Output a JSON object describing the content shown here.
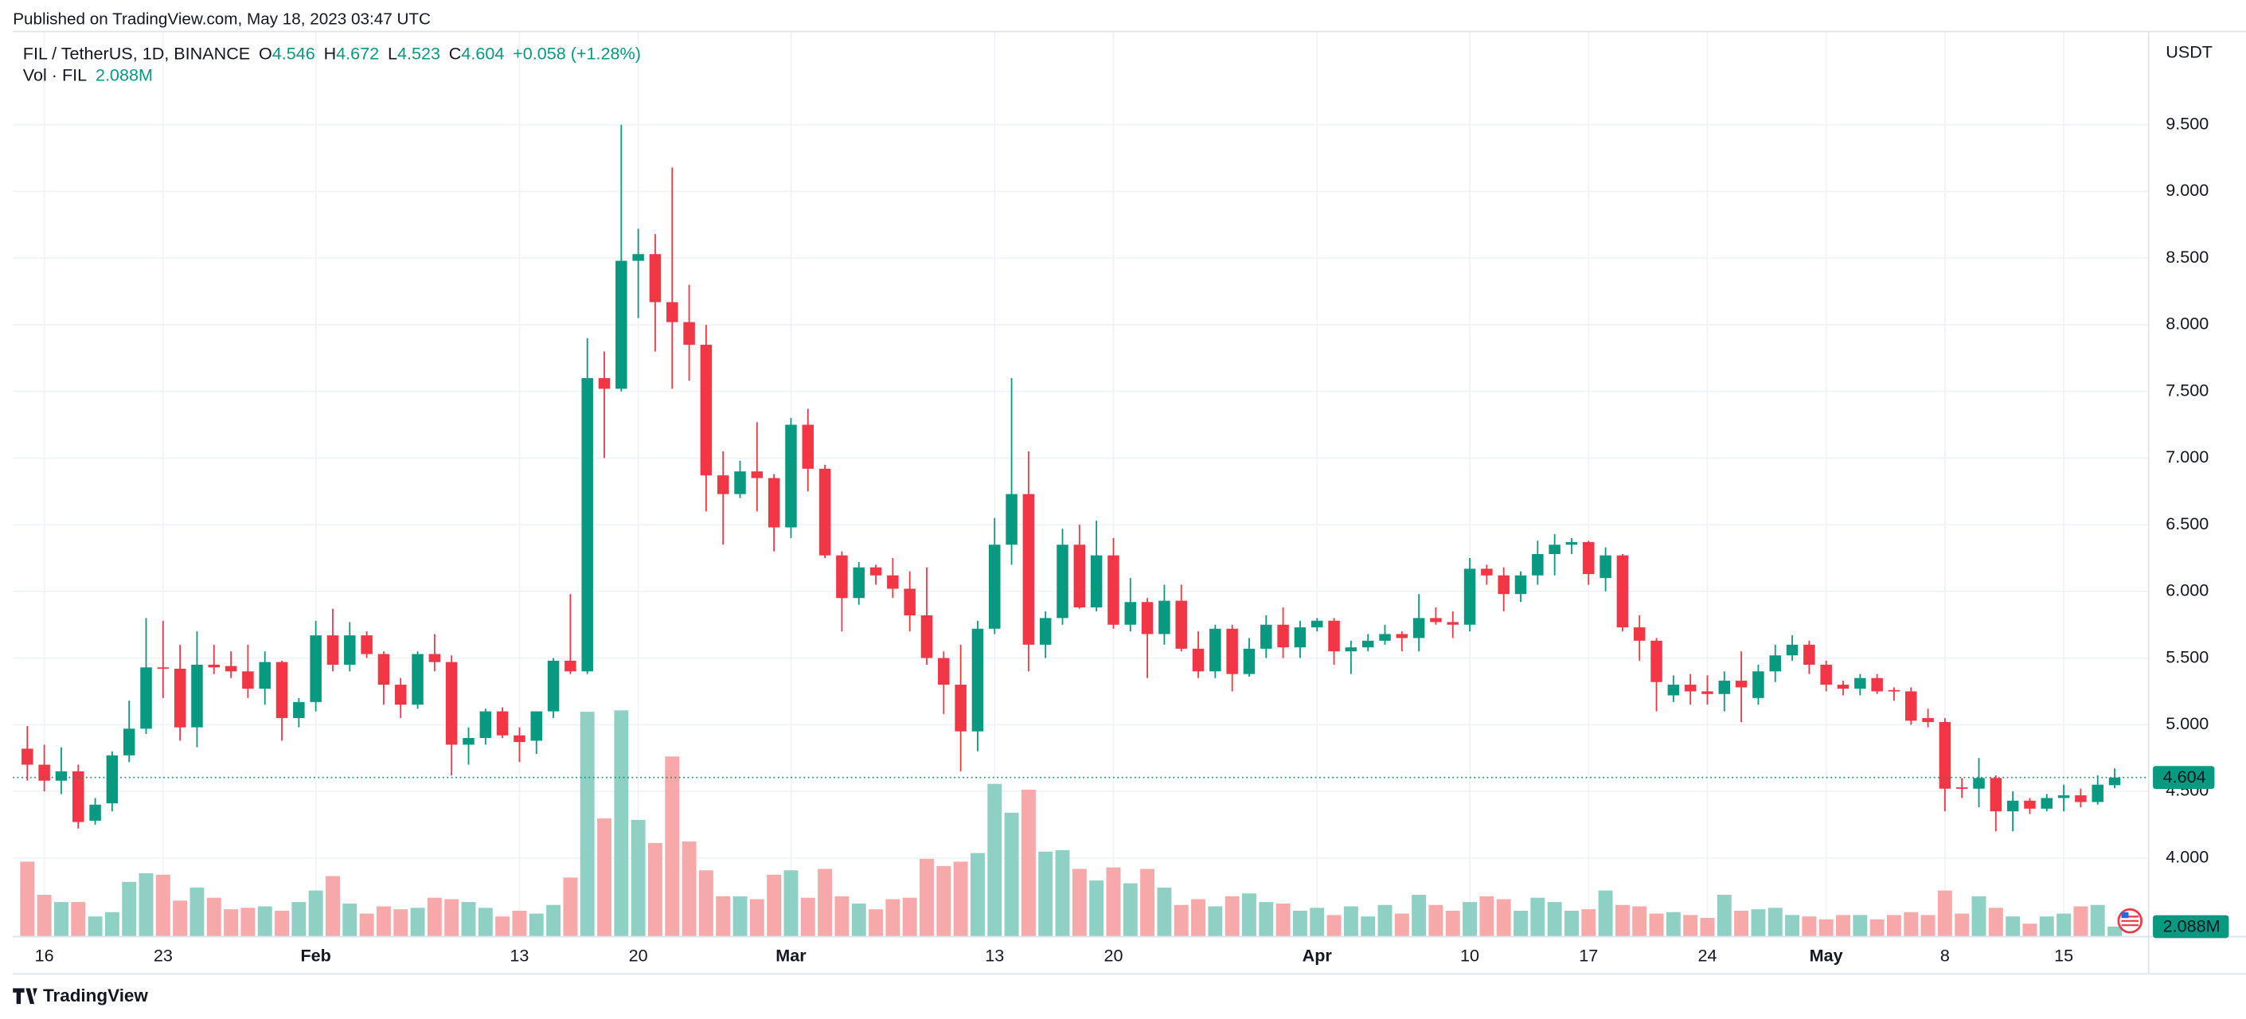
{
  "header": {
    "published": "Published on TradingView.com, May 18, 2023 03:47 UTC",
    "brand": "TradingView"
  },
  "chart_data": {
    "type": "candlestick",
    "symbol": "FIL / TetherUS, 1D, BINANCE",
    "ohlc_letters": [
      "O",
      "H",
      "L",
      "C"
    ],
    "change": "+0.058 (+1.28%)",
    "volume_title": "Vol · FIL",
    "volume_label": "2.088M",
    "currency": "USDT",
    "up_color": "#089981",
    "down_color": "#f23645",
    "up_volume_color": "#8fd0c4",
    "down_volume_color": "#f7a8a8",
    "grid": true,
    "open": [
      4.82,
      4.7,
      4.58,
      4.65,
      4.28,
      4.41,
      4.77,
      4.97,
      5.43,
      5.42,
      4.98,
      5.45,
      5.44,
      5.4,
      5.27,
      5.47,
      5.05,
      5.17,
      5.67,
      5.45,
      5.67,
      5.53,
      5.3,
      5.15,
      5.53,
      5.47,
      4.85,
      4.9,
      5.1,
      4.92,
      4.88,
      5.1,
      5.48,
      5.4,
      7.6,
      7.52,
      8.48,
      8.53,
      8.17,
      8.02,
      7.85,
      6.87,
      6.73,
      6.9,
      6.85,
      6.48,
      7.25,
      6.92,
      6.27,
      5.95,
      6.18,
      6.12,
      6.02,
      5.82,
      5.5,
      5.3,
      4.95,
      5.72,
      6.35,
      6.73,
      5.6,
      5.8,
      6.35,
      5.88,
      6.27,
      5.75,
      5.92,
      5.68,
      5.93,
      5.57,
      5.4,
      5.72,
      5.38,
      5.57,
      5.75,
      5.58,
      5.73,
      5.78,
      5.55,
      5.58,
      5.63,
      5.68,
      5.65,
      5.8,
      5.77,
      5.75,
      6.17,
      6.12,
      5.98,
      6.12,
      6.28,
      6.35,
      6.37,
      6.1,
      6.27,
      5.73,
      5.63,
      5.22,
      5.3,
      5.25,
      5.23,
      5.33,
      5.2,
      5.4,
      5.52,
      5.6,
      5.45,
      5.3,
      5.27,
      5.35,
      5.26,
      5.25,
      5.05,
      5.02,
      4.53,
      4.52,
      4.6,
      4.35,
      4.43,
      4.37,
      4.45,
      4.47,
      4.42,
      4.546
    ],
    "high": [
      4.99,
      4.85,
      4.83,
      4.7,
      4.45,
      4.8,
      5.18,
      5.8,
      5.78,
      5.6,
      5.7,
      5.6,
      5.55,
      5.6,
      5.55,
      5.48,
      5.2,
      5.78,
      5.87,
      5.77,
      5.7,
      5.55,
      5.35,
      5.55,
      5.68,
      5.52,
      4.98,
      5.12,
      5.13,
      4.98,
      5.1,
      5.5,
      5.98,
      7.9,
      7.8,
      9.5,
      8.72,
      8.68,
      9.18,
      8.3,
      8.0,
      7.05,
      6.98,
      7.27,
      6.88,
      7.3,
      7.37,
      6.95,
      6.3,
      6.22,
      6.2,
      6.25,
      6.15,
      6.18,
      5.55,
      5.6,
      5.78,
      6.55,
      7.6,
      7.05,
      5.85,
      6.47,
      6.5,
      6.53,
      6.4,
      6.1,
      5.95,
      6.05,
      6.05,
      5.7,
      5.75,
      5.75,
      5.65,
      5.82,
      5.88,
      5.78,
      5.8,
      5.8,
      5.63,
      5.68,
      5.75,
      5.7,
      5.98,
      5.88,
      5.85,
      6.25,
      6.2,
      6.18,
      6.15,
      6.38,
      6.43,
      6.4,
      6.38,
      6.33,
      6.28,
      5.82,
      5.65,
      5.37,
      5.38,
      5.37,
      5.4,
      5.55,
      5.45,
      5.6,
      5.67,
      5.63,
      5.48,
      5.33,
      5.38,
      5.38,
      5.28,
      5.28,
      5.12,
      5.05,
      4.6,
      4.75,
      4.62,
      4.5,
      4.45,
      4.48,
      4.55,
      4.52,
      4.62,
      4.672
    ],
    "low": [
      4.58,
      4.5,
      4.48,
      4.22,
      4.25,
      4.35,
      4.72,
      4.93,
      5.2,
      4.88,
      4.83,
      5.38,
      5.35,
      5.2,
      5.15,
      4.88,
      4.98,
      5.1,
      5.4,
      5.4,
      5.5,
      5.15,
      5.05,
      5.12,
      5.4,
      4.62,
      4.7,
      4.85,
      4.9,
      4.72,
      4.78,
      5.05,
      5.38,
      5.38,
      7.0,
      7.5,
      8.05,
      7.8,
      7.52,
      7.58,
      6.6,
      6.35,
      6.7,
      6.6,
      6.3,
      6.4,
      6.75,
      6.25,
      5.7,
      5.9,
      6.05,
      5.95,
      5.7,
      5.45,
      5.08,
      4.65,
      4.8,
      5.68,
      6.2,
      5.4,
      5.5,
      5.75,
      5.87,
      5.85,
      5.72,
      5.7,
      5.35,
      5.6,
      5.55,
      5.35,
      5.35,
      5.25,
      5.36,
      5.5,
      5.5,
      5.5,
      5.7,
      5.45,
      5.38,
      5.55,
      5.6,
      5.55,
      5.55,
      5.75,
      5.65,
      5.7,
      6.05,
      5.85,
      5.92,
      6.05,
      6.12,
      6.28,
      6.05,
      6.0,
      5.7,
      5.48,
      5.1,
      5.17,
      5.15,
      5.15,
      5.1,
      5.02,
      5.15,
      5.32,
      5.48,
      5.38,
      5.25,
      5.22,
      5.22,
      5.23,
      5.18,
      5.0,
      4.98,
      4.35,
      4.45,
      4.38,
      4.2,
      4.2,
      4.33,
      4.35,
      4.35,
      4.38,
      4.4,
      4.523
    ],
    "close": [
      4.7,
      4.58,
      4.65,
      4.27,
      4.4,
      4.77,
      4.97,
      5.43,
      5.42,
      4.98,
      5.45,
      5.43,
      5.4,
      5.27,
      5.47,
      5.05,
      5.17,
      5.67,
      5.45,
      5.67,
      5.53,
      5.3,
      5.15,
      5.53,
      5.47,
      4.85,
      4.9,
      5.1,
      4.92,
      4.87,
      5.1,
      5.48,
      5.4,
      7.6,
      7.52,
      8.48,
      8.53,
      8.17,
      8.02,
      7.85,
      6.87,
      6.73,
      6.9,
      6.85,
      6.48,
      7.25,
      6.92,
      6.27,
      5.95,
      6.18,
      6.12,
      6.02,
      5.82,
      5.5,
      5.3,
      4.95,
      5.72,
      6.35,
      6.73,
      5.6,
      5.8,
      6.35,
      5.88,
      6.27,
      5.75,
      5.92,
      5.68,
      5.93,
      5.57,
      5.4,
      5.72,
      5.38,
      5.57,
      5.75,
      5.58,
      5.73,
      5.78,
      5.55,
      5.58,
      5.63,
      5.68,
      5.65,
      5.8,
      5.77,
      5.75,
      6.17,
      6.12,
      5.98,
      6.12,
      6.28,
      6.35,
      6.37,
      6.13,
      6.27,
      5.73,
      5.63,
      5.32,
      5.3,
      5.25,
      5.23,
      5.33,
      5.28,
      5.4,
      5.52,
      5.6,
      5.45,
      5.3,
      5.27,
      5.35,
      5.25,
      5.25,
      5.03,
      5.02,
      4.52,
      4.52,
      4.6,
      4.35,
      4.43,
      4.37,
      4.45,
      4.47,
      4.42,
      4.55,
      4.604
    ],
    "volume": [
      15.6,
      8.7,
      7.2,
      7.2,
      4.2,
      5.1,
      11.4,
      13.2,
      12.9,
      7.5,
      10.2,
      8.1,
      5.7,
      6.0,
      6.3,
      5.4,
      7.2,
      9.6,
      12.6,
      6.9,
      4.8,
      6.3,
      5.7,
      6.0,
      8.1,
      7.8,
      7.2,
      6.0,
      4.2,
      5.4,
      4.8,
      6.6,
      12.3,
      46.8,
      24.6,
      47.1,
      24.3,
      19.5,
      37.5,
      19.8,
      13.8,
      8.4,
      8.4,
      7.8,
      12.9,
      13.8,
      8.1,
      14.1,
      8.4,
      6.9,
      5.7,
      7.8,
      8.1,
      16.2,
      14.7,
      15.6,
      17.4,
      31.8,
      25.8,
      30.6,
      17.7,
      18.0,
      14.1,
      11.7,
      14.4,
      11.1,
      14.1,
      10.2,
      6.6,
      7.8,
      6.3,
      8.4,
      9.0,
      7.2,
      6.9,
      5.4,
      6.0,
      4.5,
      6.3,
      4.2,
      6.6,
      4.8,
      8.7,
      6.6,
      5.4,
      7.2,
      8.4,
      7.8,
      5.4,
      8.1,
      7.2,
      5.4,
      5.7,
      9.6,
      6.6,
      6.3,
      4.8,
      5.1,
      4.5,
      3.9,
      8.7,
      5.4,
      5.7,
      6.0,
      4.5,
      4.2,
      3.6,
      4.5,
      4.5,
      3.6,
      4.5,
      5.1,
      4.5,
      9.6,
      4.8,
      8.4,
      6.0,
      4.2,
      2.7,
      4.2,
      4.8,
      6.3,
      6.6,
      2.088
    ],
    "xlim": [
      -0.85,
      125
    ],
    "xticks": [
      {
        "value": 1,
        "label": "16"
      },
      {
        "value": 8,
        "label": "23"
      },
      {
        "value": 17,
        "label": "Feb"
      },
      {
        "value": 29,
        "label": "13"
      },
      {
        "value": 36,
        "label": "20"
      },
      {
        "value": 45,
        "label": "Mar"
      },
      {
        "value": 57,
        "label": "13"
      },
      {
        "value": 64,
        "label": "20"
      },
      {
        "value": 76,
        "label": "Apr"
      },
      {
        "value": 85,
        "label": "10"
      },
      {
        "value": 92,
        "label": "17"
      },
      {
        "value": 99,
        "label": "24"
      },
      {
        "value": 106,
        "label": "May"
      },
      {
        "value": 113,
        "label": "8"
      },
      {
        "value": 120,
        "label": "15"
      }
    ],
    "ylim": [
      3.41,
      10.2
    ],
    "yticks": [
      {
        "value": 4,
        "label": "4.000"
      },
      {
        "value": 4.5,
        "label": "4.500"
      },
      {
        "value": 5,
        "label": "5.000"
      },
      {
        "value": 5.5,
        "label": "5.500"
      },
      {
        "value": 6,
        "label": "6.000"
      },
      {
        "value": 6.5,
        "label": "6.500"
      },
      {
        "value": 7,
        "label": "7.000"
      },
      {
        "value": 7.5,
        "label": "7.500"
      },
      {
        "value": 8,
        "label": "8.000"
      },
      {
        "value": 8.5,
        "label": "8.500"
      },
      {
        "value": 9,
        "label": "9.000"
      },
      {
        "value": 9.5,
        "label": "9.500"
      }
    ]
  }
}
